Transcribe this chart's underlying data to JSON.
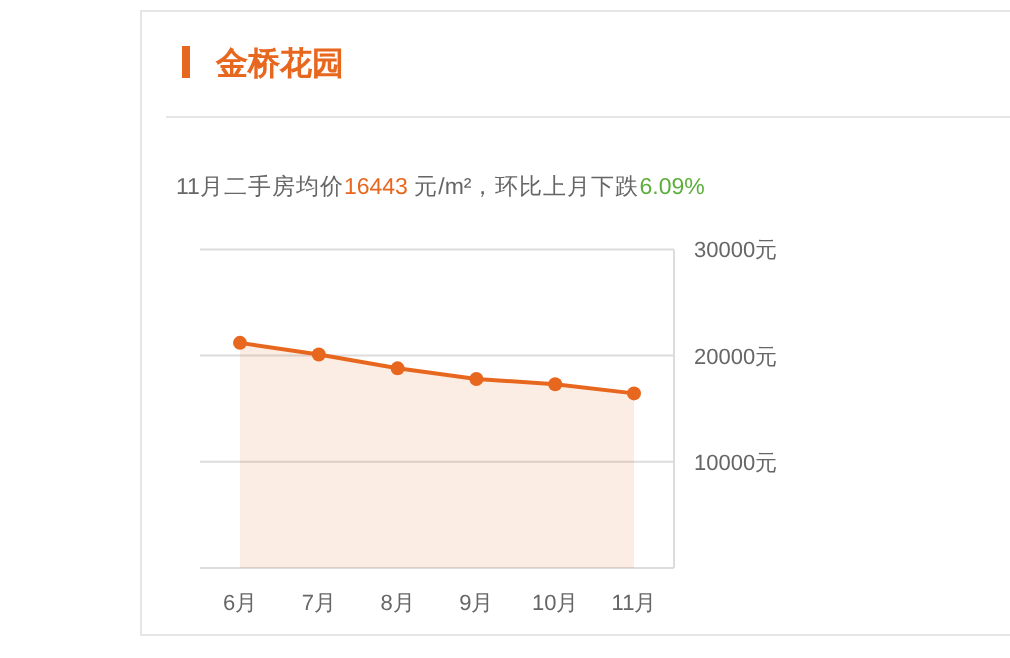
{
  "chart_data": {
    "type": "area",
    "title": "金桥花园",
    "subtitle": "11月二手房均价16443 元/m²，环比上月下跌6.09%",
    "categories": [
      "6月",
      "7月",
      "8月",
      "9月",
      "10月",
      "11月"
    ],
    "series": [
      {
        "color": "#e8671e",
        "values": [
          21200,
          20100,
          18800,
          17800,
          17300,
          16443
        ]
      }
    ],
    "ylim": [
      0,
      30000
    ],
    "yticks": [
      {
        "value": 10000,
        "label": "10000元"
      },
      {
        "value": 20000,
        "label": "20000元"
      },
      {
        "value": 30000,
        "label": "30000元"
      }
    ],
    "grid": "y",
    "marker": "circle",
    "line_style": "solid"
  }
}
